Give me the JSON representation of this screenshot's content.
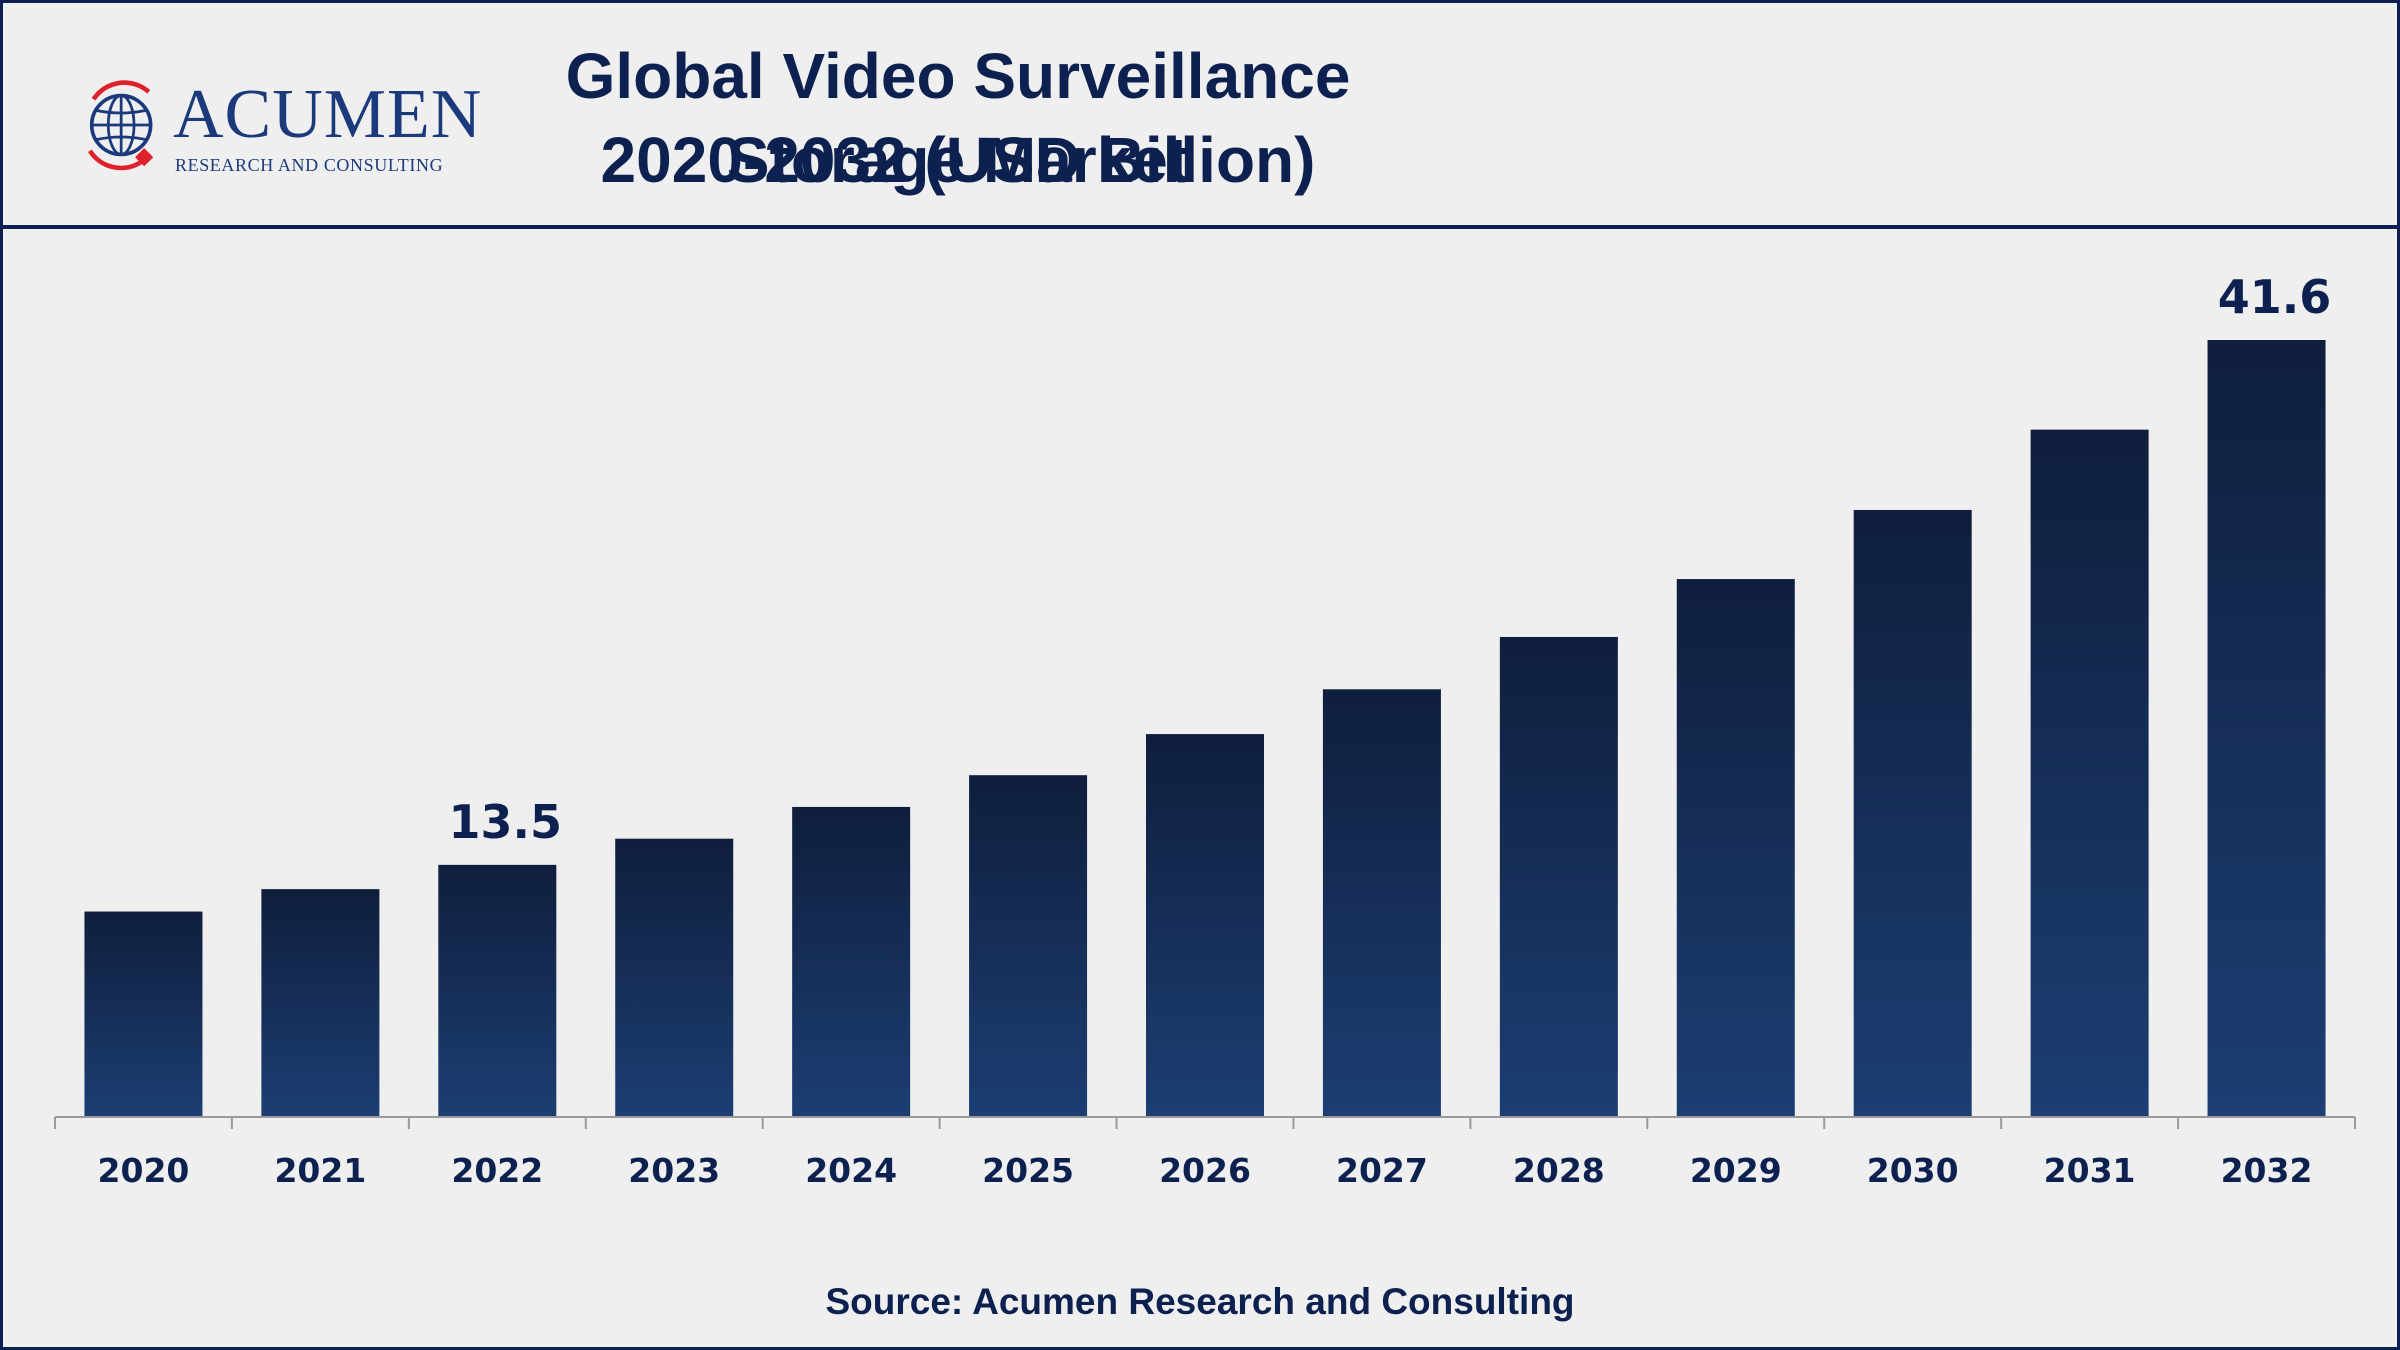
{
  "logo": {
    "name": "ACUMEN",
    "tagline": "RESEARCH AND CONSULTING"
  },
  "header": {
    "title_line1": "Global Video Surveillance Storage Market",
    "title_line2": "2020-2032 (USD Billion)"
  },
  "footer": {
    "source": "Source: Acumen Research and Consulting"
  },
  "colors": {
    "navy": "#0d2150",
    "bar_top": "#0f1e3c",
    "bar_bottom": "#1c3e73",
    "axis": "#9a9a9a",
    "logo_red": "#e0212b"
  },
  "chart_data": {
    "type": "bar",
    "title": "Global Video Surveillance Storage Market 2020-2032 (USD Billion)",
    "xlabel": "",
    "ylabel": "",
    "categories": [
      "2020",
      "2021",
      "2022",
      "2023",
      "2024",
      "2025",
      "2026",
      "2027",
      "2028",
      "2029",
      "2030",
      "2031",
      "2032"
    ],
    "values": [
      11.0,
      12.2,
      13.5,
      14.9,
      16.6,
      18.3,
      20.5,
      22.9,
      25.7,
      28.8,
      32.5,
      36.8,
      41.6
    ],
    "data_labels": {
      "2022": "13.5",
      "2032": "41.6"
    },
    "ylim": [
      0,
      41.6
    ],
    "grid": false,
    "legend": "none"
  }
}
